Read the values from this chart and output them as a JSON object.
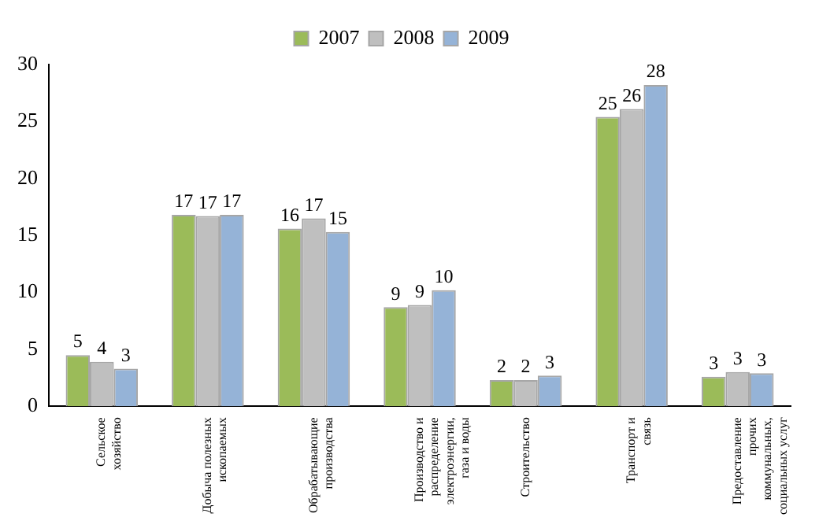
{
  "chart_data": {
    "type": "bar",
    "categories": [
      "Сельское хозяйство",
      "Добыча полезных ископаемых",
      "Обрабатывающие производства",
      "Производство и распределение электроэнергии, газа и воды",
      "Строительство",
      "Транспорт и связь",
      "Предоставление прочих коммунальных, социальных услуг"
    ],
    "series": [
      {
        "name": "2007",
        "color": "#9bbb59",
        "values": [
          4.5,
          16.8,
          15.6,
          8.7,
          2.3,
          25.4,
          2.6
        ],
        "value_labels": [
          "5",
          "17",
          "16",
          "9",
          "2",
          "25",
          "3"
        ]
      },
      {
        "name": "2008",
        "color": "#bfbfbf",
        "values": [
          3.9,
          16.7,
          16.5,
          8.9,
          2.3,
          26.1,
          3.0
        ],
        "value_labels": [
          "4",
          "17",
          "17",
          "9",
          "2",
          "26",
          "3"
        ]
      },
      {
        "name": "2009",
        "color": "#95b3d7",
        "values": [
          3.3,
          16.8,
          15.3,
          10.2,
          2.7,
          28.2,
          2.9
        ],
        "value_labels": [
          "3",
          "17",
          "15",
          "10",
          "3",
          "28",
          "3"
        ]
      }
    ],
    "ylim": [
      0,
      30
    ],
    "yticks": [
      0,
      5,
      10,
      15,
      20,
      25,
      30
    ],
    "grid": false,
    "legend": "top"
  }
}
